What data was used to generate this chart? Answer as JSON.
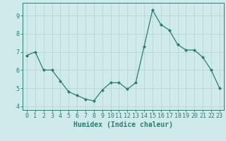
{
  "x": [
    0,
    1,
    2,
    3,
    4,
    5,
    6,
    7,
    8,
    9,
    10,
    11,
    12,
    13,
    14,
    15,
    16,
    17,
    18,
    19,
    20,
    21,
    22,
    23
  ],
  "y": [
    6.8,
    7.0,
    6.0,
    6.0,
    5.4,
    4.8,
    4.6,
    4.4,
    4.3,
    4.9,
    5.3,
    5.3,
    4.95,
    5.3,
    7.3,
    9.3,
    8.5,
    8.2,
    7.4,
    7.1,
    7.1,
    6.7,
    6.0,
    5.0
  ],
  "line_color": "#2e7d6e",
  "marker": "D",
  "marker_size": 2.0,
  "bg_color": "#ceeaea",
  "grid_color": "#b8d4d4",
  "xlabel": "Humidex (Indice chaleur)",
  "xlim": [
    -0.5,
    23.5
  ],
  "ylim": [
    3.8,
    9.7
  ],
  "yticks": [
    4,
    5,
    6,
    7,
    8,
    9
  ],
  "xticks": [
    0,
    1,
    2,
    3,
    4,
    5,
    6,
    7,
    8,
    9,
    10,
    11,
    12,
    13,
    14,
    15,
    16,
    17,
    18,
    19,
    20,
    21,
    22,
    23
  ],
  "tick_color": "#2e7d6e",
  "label_color": "#2e7d6e",
  "font_size": 6,
  "xlabel_fontsize": 7,
  "linewidth": 0.9
}
